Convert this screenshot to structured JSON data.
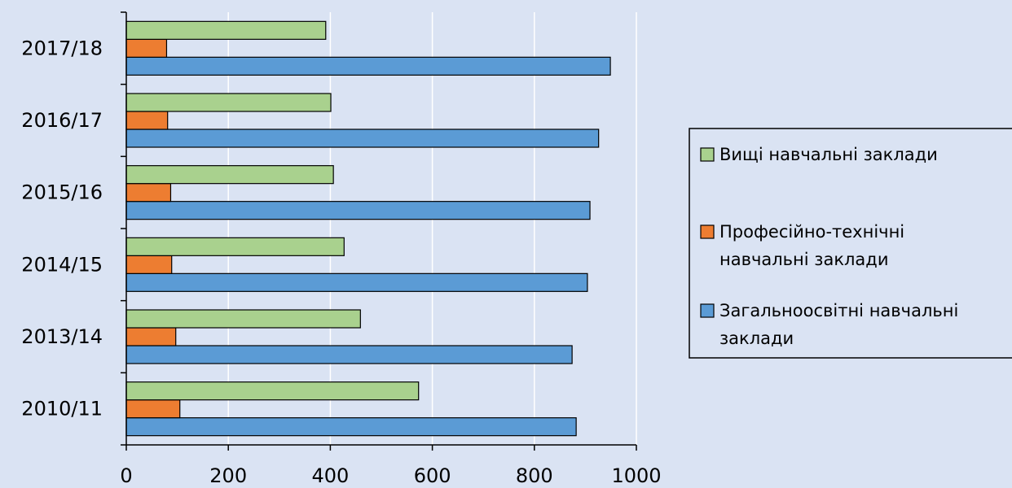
{
  "chart_data": {
    "type": "bar",
    "orientation": "horizontal",
    "categories": [
      "2010/11",
      "2013/14",
      "2014/15",
      "2015/16",
      "2016/17",
      "2017/18"
    ],
    "series": [
      {
        "name": "Загальноосвітні навчальні заклади",
        "color": "#5b9bd5",
        "values": [
          882,
          874,
          904,
          909,
          926,
          949
        ]
      },
      {
        "name": "Професійно-технічні навчальні заклади",
        "color": "#ed7d31",
        "values": [
          105,
          97,
          89,
          87,
          81,
          79
        ]
      },
      {
        "name": "Вищі навчальні заклади",
        "color": "#a9d18e",
        "values": [
          573,
          459,
          427,
          406,
          401,
          391
        ]
      }
    ],
    "xlim": [
      0,
      1000
    ],
    "xticks": [
      0,
      200,
      400,
      600,
      800,
      1000
    ],
    "grid": true,
    "legend_position": "right",
    "legend_order": [
      2,
      1,
      0
    ],
    "legend_lines": [
      [
        "Вищі навчальні заклади"
      ],
      [
        "Професійно-технічні",
        "навчальні заклади"
      ],
      [
        "Загальноосвітні навчальні",
        "заклади"
      ]
    ]
  },
  "colors": {
    "background": "#dae3f3",
    "gridline": "#ffffff"
  }
}
